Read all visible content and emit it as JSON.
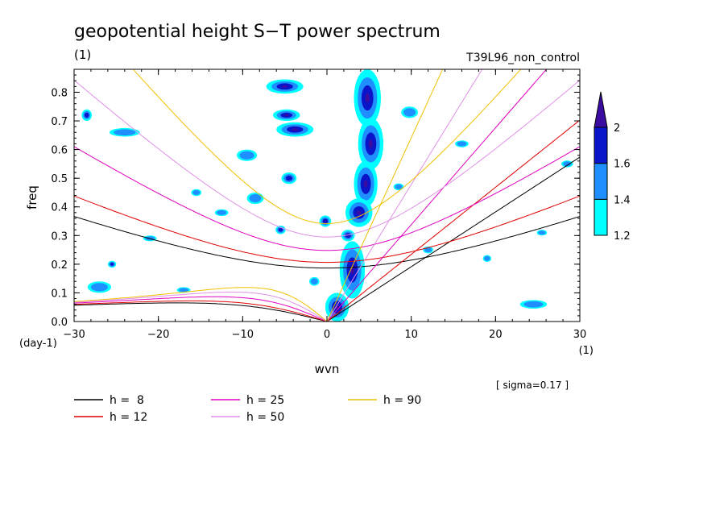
{
  "chart_data": {
    "type": "line",
    "title": "geopotential height S−T power spectrum",
    "subtitle_left": "(1)",
    "subtitle_right": "T39L96_non_control",
    "xlabel": "wvn",
    "ylabel": "freq",
    "x_unit": "(1)",
    "y_unit": "(day-1)",
    "xlim": [
      -30,
      30
    ],
    "ylim": [
      0,
      0.88
    ],
    "x_ticks": [
      -30,
      -20,
      -10,
      0,
      10,
      20,
      30
    ],
    "x_tick_labels": [
      "−30",
      "−20",
      "−10",
      "0",
      "10",
      "20",
      "30"
    ],
    "y_ticks": [
      0,
      0.1,
      0.2,
      0.3,
      0.4,
      0.5,
      0.6,
      0.7,
      0.8
    ],
    "y_tick_labels": [
      "0.0",
      "0.1",
      "0.2",
      "0.3",
      "0.4",
      "0.5",
      "0.6",
      "0.7",
      "0.8"
    ],
    "note": "[ sigma=0.17 ]",
    "colorbar": {
      "levels": [
        1.2,
        1.4,
        1.6,
        2
      ],
      "level_labels": [
        "1.2",
        "1.4",
        "1.6",
        "2"
      ],
      "colors": [
        "#00ffff",
        "#1f8fff",
        "#0a14c8",
        "#3c0ca0"
      ]
    },
    "series": [
      {
        "name": "h =  8",
        "h": 8,
        "color": "#000000"
      },
      {
        "name": "h = 12",
        "h": 12,
        "color": "#e00000"
      },
      {
        "name": "h = 25",
        "h": 25,
        "color": "#e000c0"
      },
      {
        "name": "h = 50",
        "h": 50,
        "color": "#e090e8"
      },
      {
        "name": "h = 90",
        "h": 90,
        "color": "#f0c000"
      }
    ],
    "filled_contour_blobs": [
      {
        "x": 4.8,
        "y": 0.78,
        "rx": 1.6,
        "ry": 0.1,
        "level": 3
      },
      {
        "x": 5.2,
        "y": 0.62,
        "rx": 1.5,
        "ry": 0.09,
        "level": 3
      },
      {
        "x": 4.6,
        "y": 0.48,
        "rx": 1.4,
        "ry": 0.08,
        "level": 3
      },
      {
        "x": 3.8,
        "y": 0.38,
        "rx": 1.6,
        "ry": 0.05,
        "level": 3
      },
      {
        "x": 3.0,
        "y": 0.18,
        "rx": 1.5,
        "ry": 0.1,
        "level": 3
      },
      {
        "x": 1.2,
        "y": 0.05,
        "rx": 1.4,
        "ry": 0.05,
        "level": 3
      },
      {
        "x": -5.0,
        "y": 0.82,
        "rx": 2.2,
        "ry": 0.025,
        "level": 3
      },
      {
        "x": -3.8,
        "y": 0.67,
        "rx": 2.2,
        "ry": 0.025,
        "level": 3
      },
      {
        "x": -4.8,
        "y": 0.72,
        "rx": 1.6,
        "ry": 0.02,
        "level": 3
      },
      {
        "x": -0.2,
        "y": 0.35,
        "rx": 0.7,
        "ry": 0.02,
        "level": 3
      },
      {
        "x": -4.5,
        "y": 0.5,
        "rx": 0.9,
        "ry": 0.02,
        "level": 2
      },
      {
        "x": -5.5,
        "y": 0.32,
        "rx": 0.6,
        "ry": 0.015,
        "level": 2
      },
      {
        "x": 2.5,
        "y": 0.3,
        "rx": 0.8,
        "ry": 0.02,
        "level": 2
      },
      {
        "x": -28.5,
        "y": 0.72,
        "rx": 0.6,
        "ry": 0.02,
        "level": 2
      },
      {
        "x": -25.5,
        "y": 0.2,
        "rx": 0.5,
        "ry": 0.012,
        "level": 2
      },
      {
        "x": -27.0,
        "y": 0.12,
        "rx": 1.4,
        "ry": 0.02,
        "level": 1
      },
      {
        "x": -24.0,
        "y": 0.66,
        "rx": 1.8,
        "ry": 0.015,
        "level": 1
      },
      {
        "x": -9.5,
        "y": 0.58,
        "rx": 1.2,
        "ry": 0.02,
        "level": 1
      },
      {
        "x": -8.5,
        "y": 0.43,
        "rx": 1.0,
        "ry": 0.02,
        "level": 1
      },
      {
        "x": -12.5,
        "y": 0.38,
        "rx": 0.8,
        "ry": 0.012,
        "level": 1
      },
      {
        "x": 9.8,
        "y": 0.73,
        "rx": 1.0,
        "ry": 0.02,
        "level": 1
      },
      {
        "x": 16.0,
        "y": 0.62,
        "rx": 0.8,
        "ry": 0.012,
        "level": 1
      },
      {
        "x": 24.5,
        "y": 0.06,
        "rx": 1.6,
        "ry": 0.015,
        "level": 1
      },
      {
        "x": 28.5,
        "y": 0.55,
        "rx": 0.7,
        "ry": 0.012,
        "level": 1
      },
      {
        "x": -15.5,
        "y": 0.45,
        "rx": 0.6,
        "ry": 0.012,
        "level": 1
      },
      {
        "x": -21.0,
        "y": 0.29,
        "rx": 0.8,
        "ry": 0.01,
        "level": 1
      },
      {
        "x": 12.0,
        "y": 0.25,
        "rx": 0.6,
        "ry": 0.012,
        "level": 1
      },
      {
        "x": 19.0,
        "y": 0.22,
        "rx": 0.5,
        "ry": 0.012,
        "level": 1
      },
      {
        "x": 25.5,
        "y": 0.31,
        "rx": 0.6,
        "ry": 0.01,
        "level": 1
      },
      {
        "x": -1.5,
        "y": 0.14,
        "rx": 0.6,
        "ry": 0.015,
        "level": 1
      },
      {
        "x": -17.0,
        "y": 0.11,
        "rx": 0.8,
        "ry": 0.01,
        "level": 1
      },
      {
        "x": 8.5,
        "y": 0.47,
        "rx": 0.6,
        "ry": 0.012,
        "level": 1
      }
    ]
  }
}
